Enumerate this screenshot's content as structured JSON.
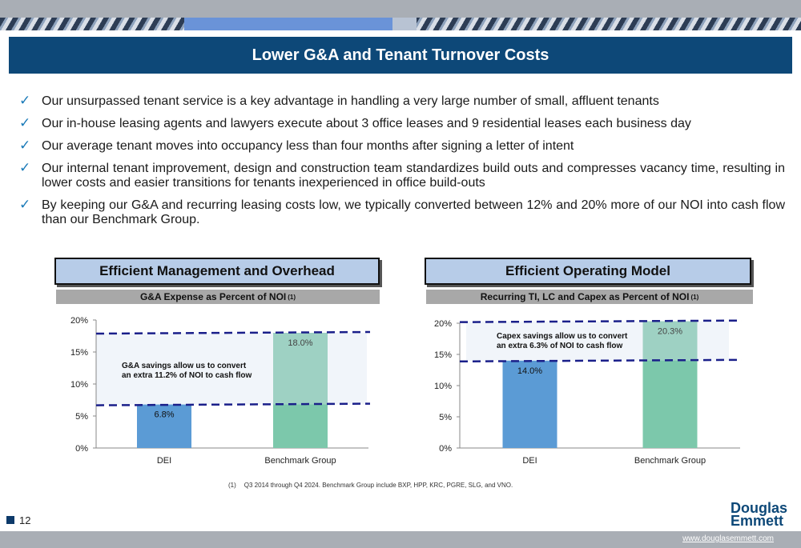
{
  "title": "Lower G&A and Tenant Turnover Costs",
  "bullets": [
    "Our unsurpassed tenant service is a key advantage in handling a very large number of small, affluent tenants",
    "Our in-house leasing agents and lawyers execute about 3 office leases and 9 residential leases each business day",
    "Our average tenant moves into occupancy less than four months after signing a letter of intent",
    "Our internal tenant improvement, design and construction team standardizes build outs and compresses vacancy time, resulting in lower costs and easier transitions for tenants inexperienced in office build-outs",
    "By keeping our G&A and recurring leasing costs low, we typically converted between 12% and 20% more of our NOI into cash flow than our Benchmark Group."
  ],
  "check_icon": "✓",
  "colors": {
    "title_bg": "#0d4878",
    "dei_bar": "#5b9bd5",
    "benchmark_bar_top": "#9ed1c3",
    "benchmark_bar_bottom": "#7cc8ab",
    "dash": "#1a1f8a",
    "panel_head": "#b7cce8"
  },
  "left_panel": {
    "header": "Efficient Management and Overhead",
    "subheader": "G&A Expense as Percent of NOI",
    "subheader_note": "(1)"
  },
  "right_panel": {
    "header": "Efficient Operating Model",
    "subheader": "Recurring TI, LC and Capex as Percent of NOI",
    "subheader_note": "(1)"
  },
  "chart_data": [
    {
      "type": "bar",
      "categories": [
        "DEI",
        "Benchmark Group"
      ],
      "values": [
        6.8,
        18.0
      ],
      "value_labels": [
        "6.8%",
        "18.0%"
      ],
      "ylim": [
        0,
        20
      ],
      "yticks": [
        "0%",
        "5%",
        "10%",
        "15%",
        "20%"
      ],
      "annotation": [
        "G&A savings allow us to convert",
        "an extra 11.2% of NOI to cash flow"
      ],
      "grid": false
    },
    {
      "type": "bar",
      "categories": [
        "DEI",
        "Benchmark Group"
      ],
      "values": [
        14.0,
        20.3
      ],
      "value_labels": [
        "14.0%",
        "20.3%"
      ],
      "ylim": [
        0,
        20
      ],
      "yticks": [
        "0%",
        "5%",
        "10%",
        "15%",
        "20%"
      ],
      "annotation": [
        "Capex savings allow us to convert",
        "an extra 6.3% of NOI to cash flow"
      ],
      "grid": false
    }
  ],
  "footnote": {
    "number": "(1)",
    "text": "Q3 2014 through Q4 2024. Benchmark Group include BXP, HPP, KRC, PGRE, SLG, and VNO."
  },
  "page_number": "12",
  "logo": {
    "line1": "Douglas",
    "line2": "Emmett"
  },
  "website": "www.douglasemmett.com"
}
